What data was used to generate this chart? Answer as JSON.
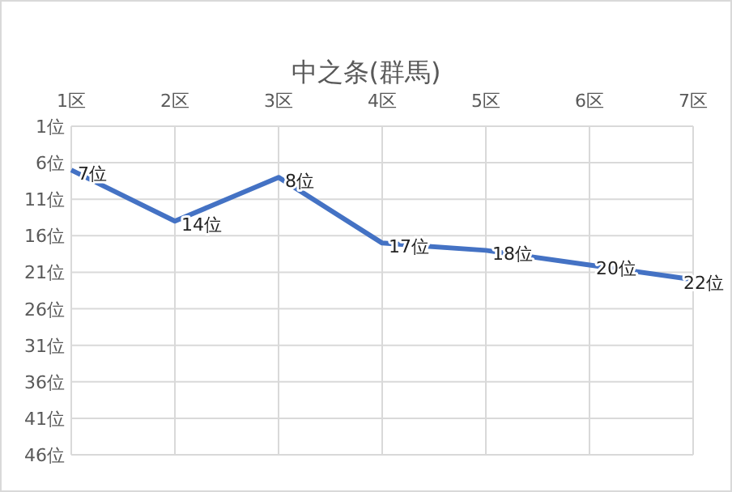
{
  "chart_data": {
    "type": "line",
    "title": "中之条(群馬)",
    "categories": [
      "1区",
      "2区",
      "3区",
      "4区",
      "5区",
      "6区",
      "7区"
    ],
    "series": [
      {
        "color": "#4472c4",
        "values": [
          7,
          14,
          8,
          17,
          18,
          20,
          22
        ],
        "value_labels": [
          "7位",
          "14位",
          "8位",
          "17位",
          "18位",
          "20位",
          "22位"
        ]
      }
    ],
    "ylim": [
      46,
      1
    ],
    "yticks": [
      {
        "value": 1,
        "label": "1位"
      },
      {
        "value": 6,
        "label": "6位"
      },
      {
        "value": 11,
        "label": "11位"
      },
      {
        "value": 16,
        "label": "16位"
      },
      {
        "value": 21,
        "label": "21位"
      },
      {
        "value": 26,
        "label": "26位"
      },
      {
        "value": 31,
        "label": "31位"
      },
      {
        "value": 36,
        "label": "36位"
      },
      {
        "value": 41,
        "label": "41位"
      },
      {
        "value": 46,
        "label": "46位"
      }
    ],
    "grid": true,
    "marker": "none",
    "line_style": "solid"
  }
}
